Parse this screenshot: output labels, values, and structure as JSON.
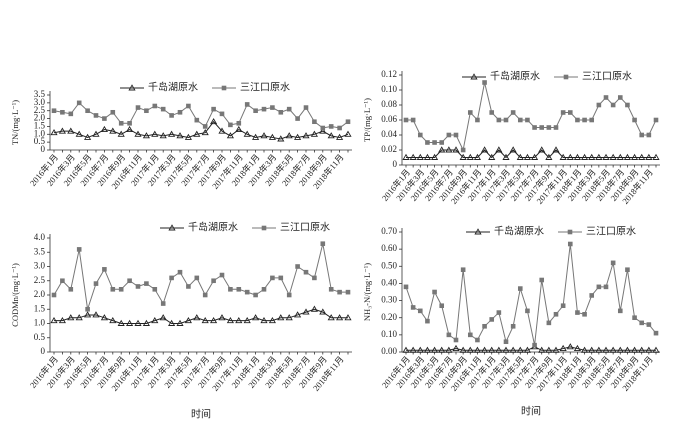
{
  "chart_data": [
    {
      "type": "line",
      "ylabel": "TN/(mg·L⁻¹)",
      "legend": "top",
      "categories": [
        "2016年1月",
        null,
        "2016年3月",
        null,
        "2016年5月",
        null,
        "2016年7月",
        null,
        "2016年9月",
        null,
        "2016年11月",
        null,
        "2017年1月",
        null,
        "2017年3月",
        null,
        "2017年5月",
        null,
        "2017年7月",
        null,
        "2017年9月",
        null,
        "2017年11月",
        null,
        "2018年1月",
        null,
        "2018年3月",
        null,
        "2018年5月",
        null,
        "2018年7月",
        null,
        "2018年9月",
        null,
        "2018年11月",
        null
      ],
      "ylim": [
        0,
        3.5
      ],
      "yticks": [
        0,
        0.5,
        {
          "value": 1,
          "label": "1.0"
        },
        1.5,
        {
          "value": 2,
          "label": "2.0"
        },
        2.5,
        {
          "value": 3,
          "label": "3.0"
        },
        3.5
      ],
      "series": [
        {
          "name": "千岛湖原水",
          "color": "#222222",
          "marker": "triangle",
          "values": [
            1.1,
            1.2,
            1.2,
            1.0,
            0.8,
            1.0,
            1.3,
            1.2,
            1.0,
            1.3,
            1.0,
            0.9,
            1.0,
            0.9,
            1.0,
            0.9,
            0.8,
            1.0,
            1.1,
            1.8,
            1.2,
            0.9,
            1.3,
            1.0,
            0.8,
            0.9,
            0.8,
            0.7,
            0.9,
            0.8,
            0.9,
            1.0,
            1.2,
            0.9,
            0.8,
            1.0
          ]
        },
        {
          "name": "三江口原水",
          "color": "#777777",
          "marker": "square",
          "values": [
            2.5,
            2.4,
            2.3,
            3.0,
            2.5,
            2.2,
            2.0,
            2.4,
            1.7,
            1.7,
            2.7,
            2.5,
            2.8,
            2.6,
            2.2,
            2.4,
            2.8,
            1.9,
            1.5,
            2.6,
            2.3,
            1.6,
            1.7,
            2.9,
            2.5,
            2.6,
            2.7,
            2.4,
            2.6,
            2.0,
            2.7,
            1.8,
            1.4,
            1.5,
            1.4,
            1.8
          ]
        }
      ]
    },
    {
      "type": "line",
      "ylabel": "TP/(mg·L⁻¹)",
      "legend": "top",
      "categories": [
        "2016年1月",
        null,
        "2016年3月",
        null,
        "2016年5月",
        null,
        "2016年7月",
        null,
        "2016年9月",
        null,
        "2016年11月",
        null,
        "2017年1月",
        null,
        "2017年3月",
        null,
        "2017年5月",
        null,
        "2017年7月",
        null,
        "2017年9月",
        null,
        "2017年11月",
        null,
        "2018年1月",
        null,
        "2018年3月",
        null,
        "2018年5月",
        null,
        "2018年7月",
        null,
        "2018年9月",
        null,
        "2018年11月",
        null
      ],
      "ylim": [
        0,
        0.12
      ],
      "yticks": [
        0,
        0.02,
        0.04,
        0.06,
        0.08,
        {
          "value": 0.1,
          "label": "0.10"
        },
        0.12
      ],
      "series": [
        {
          "name": "千岛湖原水",
          "color": "#222222",
          "marker": "triangle",
          "values": [
            0.01,
            0.01,
            0.01,
            0.01,
            0.01,
            0.02,
            0.02,
            0.02,
            0.01,
            0.01,
            0.01,
            0.02,
            0.01,
            0.02,
            0.01,
            0.02,
            0.01,
            0.01,
            0.01,
            0.02,
            0.01,
            0.02,
            0.01,
            0.01,
            0.01,
            0.01,
            0.01,
            0.01,
            0.01,
            0.01,
            0.01,
            0.01,
            0.01,
            0.01,
            0.01,
            0.01
          ]
        },
        {
          "name": "三江口原水",
          "color": "#777777",
          "marker": "square",
          "values": [
            0.06,
            0.06,
            0.04,
            0.03,
            0.03,
            0.03,
            0.04,
            0.04,
            0.02,
            0.07,
            0.06,
            0.11,
            0.07,
            0.06,
            0.06,
            0.07,
            0.06,
            0.06,
            0.05,
            0.05,
            0.05,
            0.05,
            0.07,
            0.07,
            0.06,
            0.06,
            0.06,
            0.08,
            0.09,
            0.08,
            0.09,
            0.08,
            0.06,
            0.04,
            0.04,
            0.06
          ]
        }
      ]
    },
    {
      "type": "line",
      "ylabel": "CODMn/(mg·L⁻¹)",
      "xlabel": "时间",
      "legend": "top",
      "categories": [
        "2016年1月",
        null,
        "2016年3月",
        null,
        "2016年5月",
        null,
        "2016年7月",
        null,
        "2016年9月",
        null,
        "2016年11月",
        null,
        "2017年1月",
        null,
        "2017年3月",
        null,
        "2017年5月",
        null,
        "2017年7月",
        null,
        "2017年9月",
        null,
        "2017年11月",
        null,
        "2018年1月",
        null,
        "2018年3月",
        null,
        "2018年5月",
        null,
        "2018年7月",
        null,
        "2018年9月",
        null,
        "2018年11月",
        null
      ],
      "ylim": [
        0,
        4
      ],
      "yticks": [
        0,
        0.5,
        {
          "value": 1,
          "label": "1.0"
        },
        1.5,
        {
          "value": 2,
          "label": "2.0"
        },
        2.5,
        {
          "value": 3,
          "label": "3.0"
        },
        3.5,
        {
          "value": 4,
          "label": "4.0"
        }
      ],
      "series": [
        {
          "name": "千岛湖原水",
          "color": "#222222",
          "marker": "triangle",
          "values": [
            1.1,
            1.1,
            1.2,
            1.2,
            1.3,
            1.3,
            1.2,
            1.1,
            1.0,
            1.0,
            1.0,
            1.0,
            1.1,
            1.2,
            1.0,
            1.0,
            1.1,
            1.2,
            1.1,
            1.1,
            1.2,
            1.1,
            1.1,
            1.1,
            1.2,
            1.1,
            1.1,
            1.2,
            1.2,
            1.3,
            1.4,
            1.5,
            1.4,
            1.2,
            1.2,
            1.2
          ]
        },
        {
          "name": "三江口原水",
          "color": "#777777",
          "marker": "square",
          "values": [
            2.0,
            2.5,
            2.2,
            3.6,
            1.5,
            2.4,
            2.9,
            2.2,
            2.2,
            2.5,
            2.3,
            2.4,
            2.2,
            1.7,
            2.6,
            2.8,
            2.3,
            2.6,
            2.0,
            2.5,
            2.7,
            2.2,
            2.2,
            2.1,
            2.0,
            2.2,
            2.6,
            2.6,
            2.0,
            3.0,
            2.8,
            2.6,
            3.8,
            2.2,
            2.1,
            2.1
          ]
        }
      ]
    },
    {
      "type": "line",
      "ylabel": "NH₃-N/(mg·L⁻¹)",
      "xlabel": "时间",
      "legend": "top",
      "categories": [
        "2016年1月",
        null,
        "2016年3月",
        null,
        "2016年5月",
        null,
        "2016年7月",
        null,
        "2016年9月",
        null,
        "2016年11月",
        null,
        "2017年1月",
        null,
        "2017年3月",
        null,
        "2017年5月",
        null,
        "2017年7月",
        null,
        "2017年9月",
        null,
        "2017年11月",
        null,
        "2018年1月",
        null,
        "2018年3月",
        null,
        "2018年5月",
        null,
        "2018年7月",
        null,
        "2018年9月",
        null,
        "2018年11月",
        null
      ],
      "ylim": [
        0,
        0.7
      ],
      "yticks": [
        {
          "value": 0,
          "label": "0.00"
        },
        {
          "value": 0.1,
          "label": "0.10"
        },
        {
          "value": 0.2,
          "label": "0.20"
        },
        {
          "value": 0.3,
          "label": "0.30"
        },
        {
          "value": 0.4,
          "label": "0.40"
        },
        {
          "value": 0.5,
          "label": "0.50"
        },
        {
          "value": 0.6,
          "label": "0.60"
        },
        {
          "value": 0.7,
          "label": "0.70"
        }
      ],
      "series": [
        {
          "name": "千岛湖原水",
          "color": "#222222",
          "marker": "triangle",
          "values": [
            0.01,
            0.01,
            0.01,
            0.01,
            0.01,
            0.01,
            0.01,
            0.02,
            0.01,
            0.01,
            0.01,
            0.01,
            0.01,
            0.01,
            0.01,
            0.01,
            0.01,
            0.01,
            0.03,
            0.01,
            0.01,
            0.01,
            0.02,
            0.03,
            0.02,
            0.01,
            0.01,
            0.01,
            0.01,
            0.01,
            0.01,
            0.01,
            0.01,
            0.01,
            0.01,
            0.01
          ]
        },
        {
          "name": "三江口原水",
          "color": "#777777",
          "marker": "square",
          "values": [
            0.38,
            0.26,
            0.24,
            0.18,
            0.35,
            0.27,
            0.1,
            0.07,
            0.48,
            0.1,
            0.07,
            0.15,
            0.19,
            0.23,
            0.06,
            0.15,
            0.37,
            0.24,
            0.04,
            0.42,
            0.17,
            0.22,
            0.27,
            0.63,
            0.23,
            0.22,
            0.33,
            0.38,
            0.38,
            0.52,
            0.24,
            0.48,
            0.2,
            0.17,
            0.16,
            0.11
          ]
        }
      ]
    }
  ]
}
